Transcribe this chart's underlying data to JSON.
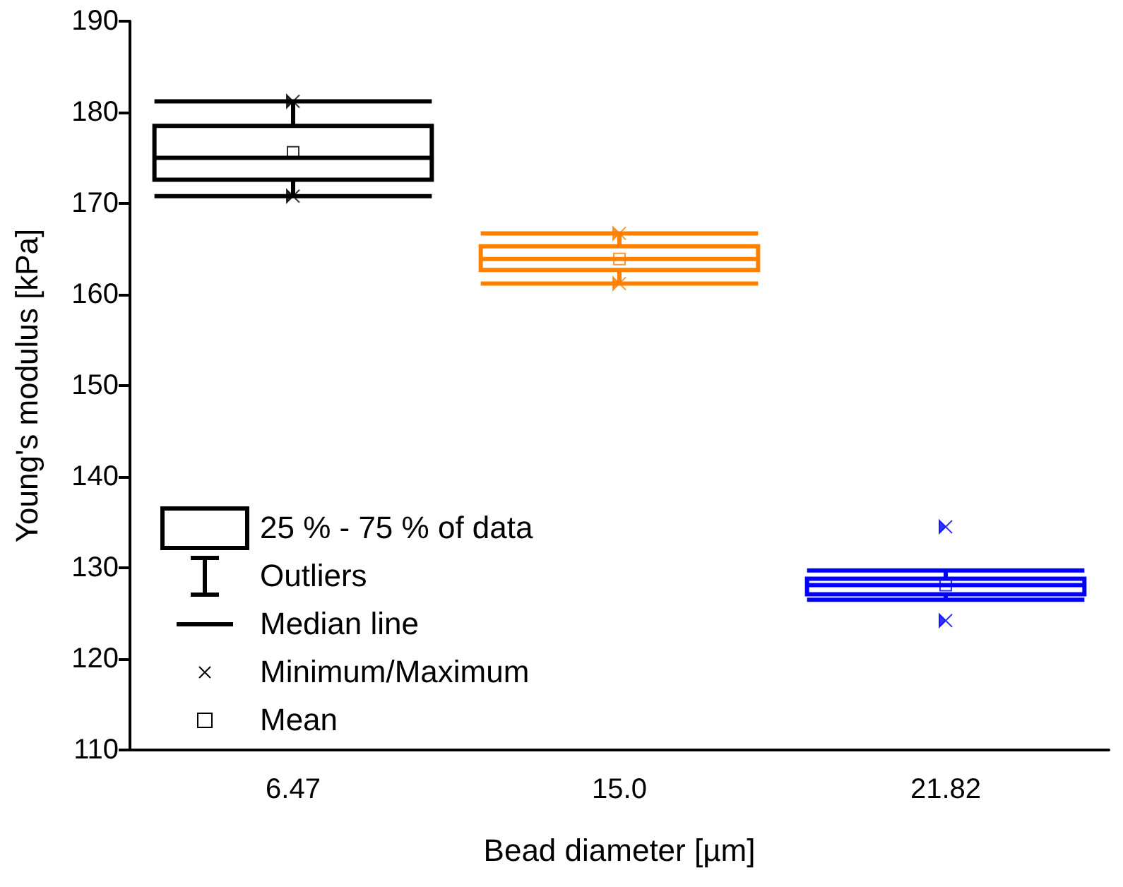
{
  "chart_data": {
    "type": "box",
    "xlabel": "Bead diameter [µm]",
    "ylabel": "Young's modulus [kPa]",
    "categories": [
      "6.47",
      "15.0",
      "21.82"
    ],
    "colors": [
      "#000000",
      "#ff8000",
      "#0000ff"
    ],
    "boxes": [
      {
        "low": 170.8,
        "q1": 172.6,
        "median": 175.0,
        "q3": 178.5,
        "high": 181.2,
        "mean": 175.6,
        "outliers": [
          170.8,
          181.2
        ]
      },
      {
        "low": 161.2,
        "q1": 162.7,
        "median": 163.9,
        "q3": 165.3,
        "high": 166.7,
        "mean": 163.9,
        "outliers": [
          161.2,
          166.7
        ]
      },
      {
        "low": 126.5,
        "q1": 127.1,
        "median": 128.1,
        "q3": 128.8,
        "high": 129.7,
        "mean": 128.1,
        "outliers": [
          124.2,
          134.5
        ]
      }
    ],
    "ylim": [
      110,
      190
    ],
    "yticks": [
      110,
      120,
      130,
      140,
      150,
      160,
      170,
      180,
      190
    ],
    "annotations": [
      "25 % - 75 % of data",
      "Outliers",
      "Median line",
      "Minimum/Maximum",
      "Mean"
    ],
    "grid": false
  }
}
